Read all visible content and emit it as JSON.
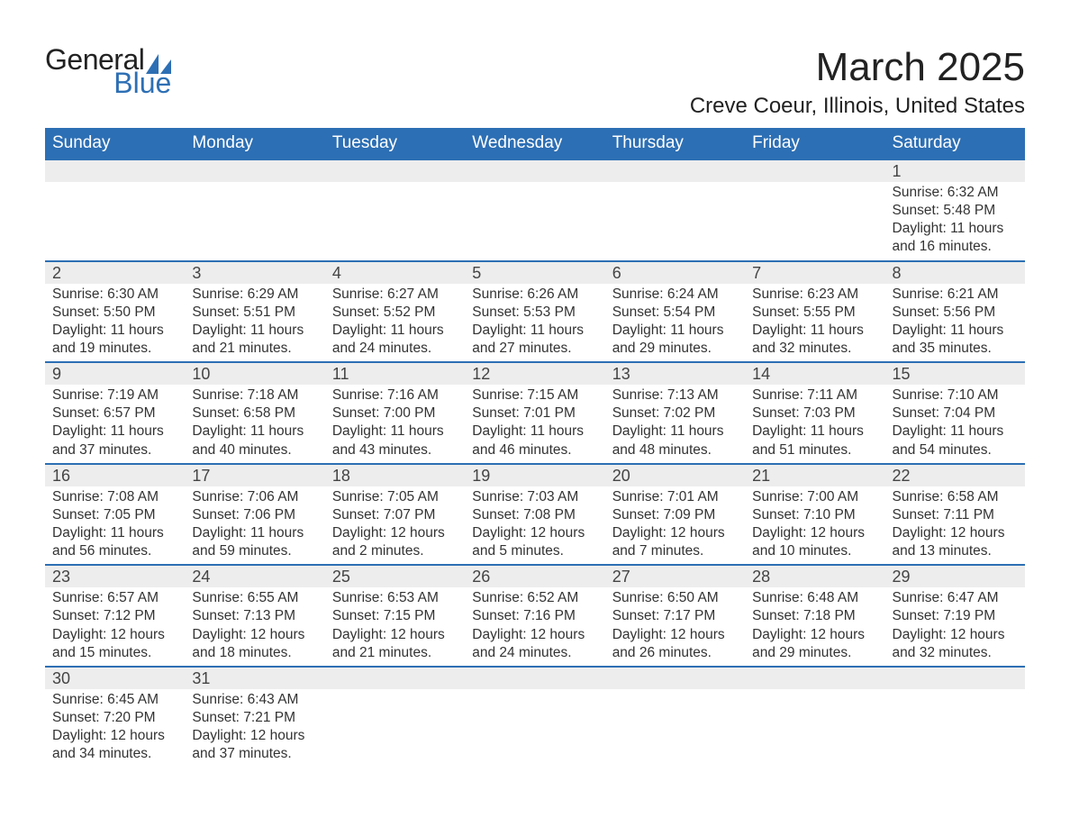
{
  "logo": {
    "text1": "General",
    "text2": "Blue"
  },
  "title": "March 2025",
  "location": "Creve Coeur, Illinois, United States",
  "colors": {
    "header_bg": "#2d6fb4",
    "header_text": "#ffffff",
    "daynum_bg": "#ededed",
    "body_bg": "#ffffff",
    "text": "#333333",
    "border": "#2d6fb4"
  },
  "day_headers": [
    "Sunday",
    "Monday",
    "Tuesday",
    "Wednesday",
    "Thursday",
    "Friday",
    "Saturday"
  ],
  "weeks": [
    [
      {
        "n": "",
        "sr": "",
        "ss": "",
        "dl": ""
      },
      {
        "n": "",
        "sr": "",
        "ss": "",
        "dl": ""
      },
      {
        "n": "",
        "sr": "",
        "ss": "",
        "dl": ""
      },
      {
        "n": "",
        "sr": "",
        "ss": "",
        "dl": ""
      },
      {
        "n": "",
        "sr": "",
        "ss": "",
        "dl": ""
      },
      {
        "n": "",
        "sr": "",
        "ss": "",
        "dl": ""
      },
      {
        "n": "1",
        "sr": "Sunrise: 6:32 AM",
        "ss": "Sunset: 5:48 PM",
        "dl": "Daylight: 11 hours and 16 minutes."
      }
    ],
    [
      {
        "n": "2",
        "sr": "Sunrise: 6:30 AM",
        "ss": "Sunset: 5:50 PM",
        "dl": "Daylight: 11 hours and 19 minutes."
      },
      {
        "n": "3",
        "sr": "Sunrise: 6:29 AM",
        "ss": "Sunset: 5:51 PM",
        "dl": "Daylight: 11 hours and 21 minutes."
      },
      {
        "n": "4",
        "sr": "Sunrise: 6:27 AM",
        "ss": "Sunset: 5:52 PM",
        "dl": "Daylight: 11 hours and 24 minutes."
      },
      {
        "n": "5",
        "sr": "Sunrise: 6:26 AM",
        "ss": "Sunset: 5:53 PM",
        "dl": "Daylight: 11 hours and 27 minutes."
      },
      {
        "n": "6",
        "sr": "Sunrise: 6:24 AM",
        "ss": "Sunset: 5:54 PM",
        "dl": "Daylight: 11 hours and 29 minutes."
      },
      {
        "n": "7",
        "sr": "Sunrise: 6:23 AM",
        "ss": "Sunset: 5:55 PM",
        "dl": "Daylight: 11 hours and 32 minutes."
      },
      {
        "n": "8",
        "sr": "Sunrise: 6:21 AM",
        "ss": "Sunset: 5:56 PM",
        "dl": "Daylight: 11 hours and 35 minutes."
      }
    ],
    [
      {
        "n": "9",
        "sr": "Sunrise: 7:19 AM",
        "ss": "Sunset: 6:57 PM",
        "dl": "Daylight: 11 hours and 37 minutes."
      },
      {
        "n": "10",
        "sr": "Sunrise: 7:18 AM",
        "ss": "Sunset: 6:58 PM",
        "dl": "Daylight: 11 hours and 40 minutes."
      },
      {
        "n": "11",
        "sr": "Sunrise: 7:16 AM",
        "ss": "Sunset: 7:00 PM",
        "dl": "Daylight: 11 hours and 43 minutes."
      },
      {
        "n": "12",
        "sr": "Sunrise: 7:15 AM",
        "ss": "Sunset: 7:01 PM",
        "dl": "Daylight: 11 hours and 46 minutes."
      },
      {
        "n": "13",
        "sr": "Sunrise: 7:13 AM",
        "ss": "Sunset: 7:02 PM",
        "dl": "Daylight: 11 hours and 48 minutes."
      },
      {
        "n": "14",
        "sr": "Sunrise: 7:11 AM",
        "ss": "Sunset: 7:03 PM",
        "dl": "Daylight: 11 hours and 51 minutes."
      },
      {
        "n": "15",
        "sr": "Sunrise: 7:10 AM",
        "ss": "Sunset: 7:04 PM",
        "dl": "Daylight: 11 hours and 54 minutes."
      }
    ],
    [
      {
        "n": "16",
        "sr": "Sunrise: 7:08 AM",
        "ss": "Sunset: 7:05 PM",
        "dl": "Daylight: 11 hours and 56 minutes."
      },
      {
        "n": "17",
        "sr": "Sunrise: 7:06 AM",
        "ss": "Sunset: 7:06 PM",
        "dl": "Daylight: 11 hours and 59 minutes."
      },
      {
        "n": "18",
        "sr": "Sunrise: 7:05 AM",
        "ss": "Sunset: 7:07 PM",
        "dl": "Daylight: 12 hours and 2 minutes."
      },
      {
        "n": "19",
        "sr": "Sunrise: 7:03 AM",
        "ss": "Sunset: 7:08 PM",
        "dl": "Daylight: 12 hours and 5 minutes."
      },
      {
        "n": "20",
        "sr": "Sunrise: 7:01 AM",
        "ss": "Sunset: 7:09 PM",
        "dl": "Daylight: 12 hours and 7 minutes."
      },
      {
        "n": "21",
        "sr": "Sunrise: 7:00 AM",
        "ss": "Sunset: 7:10 PM",
        "dl": "Daylight: 12 hours and 10 minutes."
      },
      {
        "n": "22",
        "sr": "Sunrise: 6:58 AM",
        "ss": "Sunset: 7:11 PM",
        "dl": "Daylight: 12 hours and 13 minutes."
      }
    ],
    [
      {
        "n": "23",
        "sr": "Sunrise: 6:57 AM",
        "ss": "Sunset: 7:12 PM",
        "dl": "Daylight: 12 hours and 15 minutes."
      },
      {
        "n": "24",
        "sr": "Sunrise: 6:55 AM",
        "ss": "Sunset: 7:13 PM",
        "dl": "Daylight: 12 hours and 18 minutes."
      },
      {
        "n": "25",
        "sr": "Sunrise: 6:53 AM",
        "ss": "Sunset: 7:15 PM",
        "dl": "Daylight: 12 hours and 21 minutes."
      },
      {
        "n": "26",
        "sr": "Sunrise: 6:52 AM",
        "ss": "Sunset: 7:16 PM",
        "dl": "Daylight: 12 hours and 24 minutes."
      },
      {
        "n": "27",
        "sr": "Sunrise: 6:50 AM",
        "ss": "Sunset: 7:17 PM",
        "dl": "Daylight: 12 hours and 26 minutes."
      },
      {
        "n": "28",
        "sr": "Sunrise: 6:48 AM",
        "ss": "Sunset: 7:18 PM",
        "dl": "Daylight: 12 hours and 29 minutes."
      },
      {
        "n": "29",
        "sr": "Sunrise: 6:47 AM",
        "ss": "Sunset: 7:19 PM",
        "dl": "Daylight: 12 hours and 32 minutes."
      }
    ],
    [
      {
        "n": "30",
        "sr": "Sunrise: 6:45 AM",
        "ss": "Sunset: 7:20 PM",
        "dl": "Daylight: 12 hours and 34 minutes."
      },
      {
        "n": "31",
        "sr": "Sunrise: 6:43 AM",
        "ss": "Sunset: 7:21 PM",
        "dl": "Daylight: 12 hours and 37 minutes."
      },
      {
        "n": "",
        "sr": "",
        "ss": "",
        "dl": ""
      },
      {
        "n": "",
        "sr": "",
        "ss": "",
        "dl": ""
      },
      {
        "n": "",
        "sr": "",
        "ss": "",
        "dl": ""
      },
      {
        "n": "",
        "sr": "",
        "ss": "",
        "dl": ""
      },
      {
        "n": "",
        "sr": "",
        "ss": "",
        "dl": ""
      }
    ]
  ]
}
